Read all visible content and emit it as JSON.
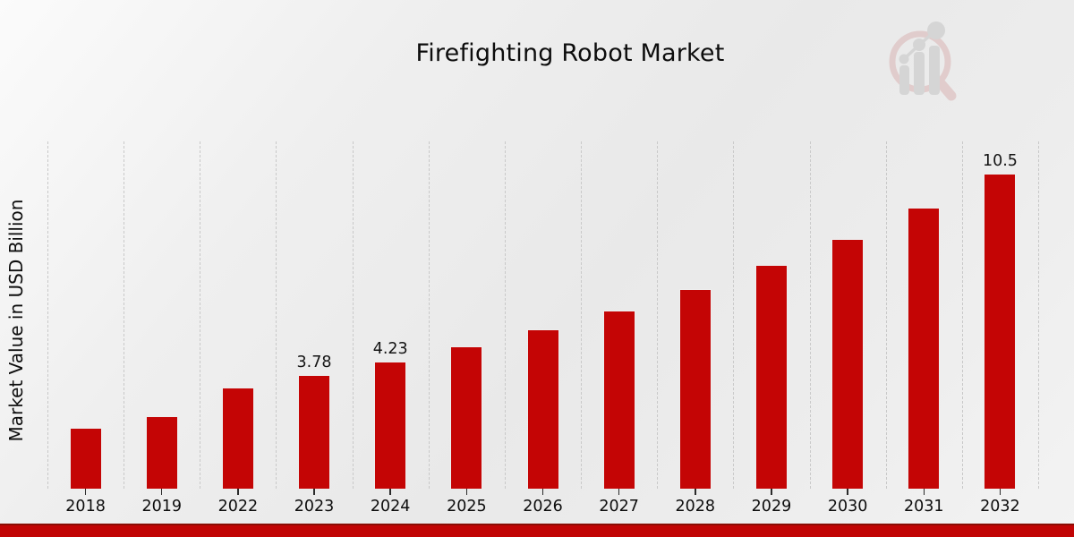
{
  "header": {
    "title": "Firefighting Robot Market"
  },
  "watermark": {
    "icon": "magnifier-bar-chart-logo-icon",
    "ring_color": "#d9b4b4",
    "glyph_color": "#c4c4c4"
  },
  "chart_data": {
    "type": "bar",
    "title": "Firefighting Robot Market",
    "xlabel": "",
    "ylabel": "Market Value in USD Billion",
    "categories": [
      "2018",
      "2019",
      "2022",
      "2023",
      "2024",
      "2025",
      "2026",
      "2027",
      "2028",
      "2029",
      "2030",
      "2031",
      "2032"
    ],
    "values": [
      2.02,
      2.41,
      3.37,
      3.78,
      4.23,
      4.74,
      5.31,
      5.94,
      6.65,
      7.46,
      8.32,
      9.37,
      10.5
    ],
    "bar_labels": [
      "",
      "",
      "",
      "3.78",
      "4.23",
      "",
      "",
      "",
      "",
      "",
      "",
      "",
      "10.5"
    ],
    "ylim": [
      0,
      11.57
    ],
    "bar_color": "#c40505",
    "bar_edge_color": "#eeeeee",
    "grid": {
      "vertical_dashed": true,
      "color": "#c9c9c9"
    },
    "legend": "none",
    "axis_text_color": "#0d0d0d"
  },
  "footer": {
    "accent_bar_color": "#c10404",
    "accent_bar_edge_color": "#8a0c04"
  }
}
